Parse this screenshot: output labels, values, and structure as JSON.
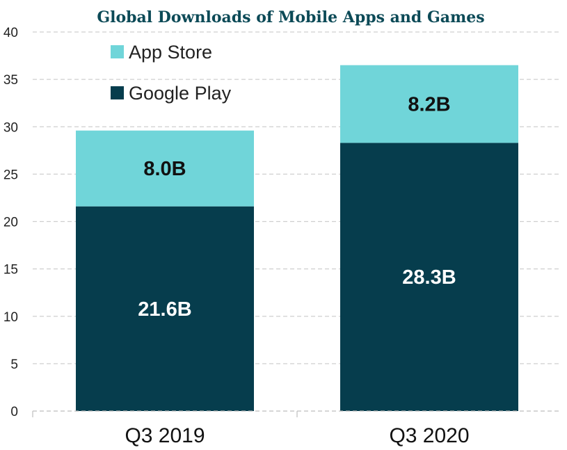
{
  "chart_data": {
    "type": "bar",
    "stacked": true,
    "title": "Global Downloads of Mobile Apps and Games",
    "xlabel": "",
    "ylabel": "",
    "categories": [
      "Q3 2019",
      "Q3 2020"
    ],
    "series": [
      {
        "name": "Google Play",
        "values": [
          21.6,
          28.3
        ],
        "labels": [
          "21.6B",
          "28.3B"
        ],
        "color": "#063d4d",
        "label_color": "#ffffff"
      },
      {
        "name": "App Store",
        "values": [
          8.0,
          8.2
        ],
        "labels": [
          "8.0B",
          "8.2B"
        ],
        "color": "#70d5d9",
        "label_color": "#111111"
      }
    ],
    "ylim": [
      0,
      40
    ],
    "yticks": [
      0,
      5,
      10,
      15,
      20,
      25,
      30,
      35,
      40
    ],
    "grid": true,
    "legend_position": "top-left",
    "title_color": "#0c4a57",
    "grid_color": "#cfcfcf"
  }
}
